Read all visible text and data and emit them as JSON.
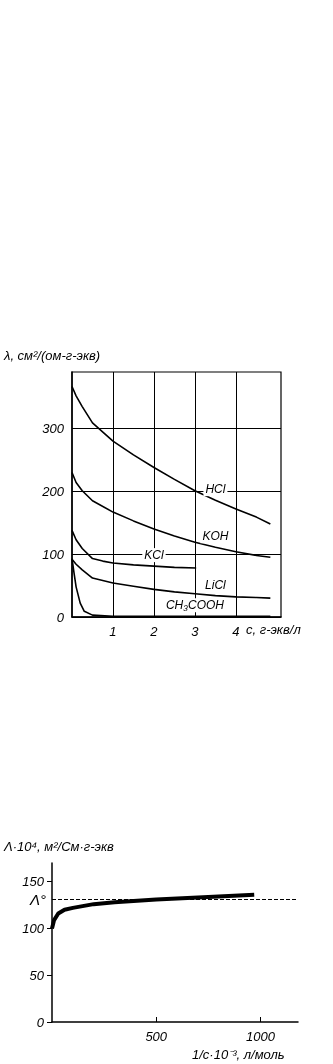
{
  "chart_data": [
    {
      "type": "line",
      "xlabel": "с, г-экв/л",
      "ylabel": "λ, см²/(ом-г-экв)",
      "xlim": [
        0,
        5.1
      ],
      "xticks": [
        1,
        2,
        3,
        4
      ],
      "ylim": [
        0,
        390
      ],
      "yticks": [
        0,
        100,
        200,
        300
      ],
      "grid": true,
      "series": [
        {
          "name": "HCl",
          "color": "#000000",
          "x": [
            0,
            0.1,
            0.25,
            0.5,
            1,
            1.5,
            2,
            2.5,
            3,
            3.5,
            4,
            4.5,
            4.84
          ],
          "values": [
            367,
            352,
            335,
            309,
            280,
            258,
            238,
            219,
            201,
            186,
            172,
            159,
            148
          ]
        },
        {
          "name": "KOH",
          "color": "#000000",
          "x": [
            0,
            0.1,
            0.25,
            0.5,
            1,
            1.5,
            2,
            2.5,
            3,
            3.5,
            4,
            4.5,
            4.84
          ],
          "values": [
            230,
            214,
            201,
            185,
            167,
            153,
            140,
            129,
            119,
            111,
            104,
            98,
            95
          ]
        },
        {
          "name": "KCl",
          "color": "#000000",
          "x": [
            0,
            0.1,
            0.25,
            0.5,
            0.75,
            1,
            1.5,
            2,
            2.5,
            3.03
          ],
          "values": [
            138,
            123,
            109,
            93,
            89,
            86,
            83,
            81,
            79,
            78
          ]
        },
        {
          "name": "LiCl",
          "color": "#000000",
          "x": [
            0,
            0.1,
            0.25,
            0.5,
            1,
            1.5,
            2,
            2.5,
            3,
            3.5,
            4,
            4.5,
            4.84
          ],
          "values": [
            92,
            84,
            75,
            62,
            54,
            49,
            44,
            40,
            37,
            34,
            32,
            31,
            30
          ]
        },
        {
          "name": "CH₃COOH",
          "color": "#000000",
          "x": [
            0,
            0.05,
            0.1,
            0.2,
            0.3,
            0.5,
            1,
            2,
            3,
            4,
            4.84
          ],
          "values": [
            93,
            70,
            48,
            22,
            9,
            3,
            1,
            1,
            1,
            1,
            1
          ]
        }
      ]
    },
    {
      "type": "line",
      "xlabel": "1/c·10⁻³, л/моль",
      "ylabel": "Λ·10⁴, м²/См·г-экв",
      "xlim": [
        0,
        1180
      ],
      "xticks": [
        500,
        1000
      ],
      "ylim": [
        0,
        170
      ],
      "yticks": [
        0,
        50,
        100,
        150
      ],
      "grid": false,
      "ref_lines": [
        {
          "axis": "y",
          "value": 131,
          "label": "Λ°",
          "line_style": "dashed",
          "color": "#000000"
        }
      ],
      "series": [
        {
          "color": "#000000",
          "x": [
            0,
            10,
            30,
            60,
            100,
            200,
            300,
            500,
            700,
            970
          ],
          "values": [
            100,
            109,
            116,
            120,
            122,
            126,
            128,
            131,
            133,
            136
          ]
        }
      ]
    }
  ]
}
